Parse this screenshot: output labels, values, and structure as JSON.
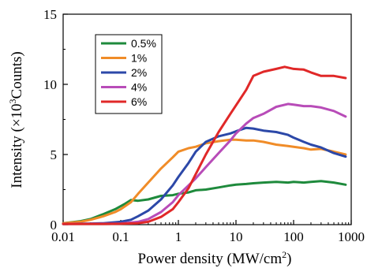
{
  "chart_data": {
    "type": "line",
    "xlabel": "Power density (MW/cm",
    "xlabel_superscript": "2",
    "xlabel_suffix": ")",
    "ylabel": "Intensity (×10",
    "ylabel_superscript": "3",
    "ylabel_suffix": "Counts)",
    "x_scale": "log",
    "xlim": [
      0.01,
      1000
    ],
    "ylim": [
      0,
      15
    ],
    "x_ticks": [
      "0.01",
      "0.1",
      "1",
      "10",
      "100",
      "1000"
    ],
    "x_tick_values": [
      0.01,
      0.1,
      1,
      10,
      100,
      1000
    ],
    "y_ticks": [
      "0",
      "5",
      "10",
      "15"
    ],
    "y_tick_values": [
      0,
      5,
      10,
      15
    ],
    "grid": false,
    "legend_position": "top-left",
    "series": [
      {
        "name": "0.5%",
        "color": "#1e8a3c",
        "points": [
          [
            0.01,
            0.1
          ],
          [
            0.02,
            0.25
          ],
          [
            0.03,
            0.4
          ],
          [
            0.05,
            0.75
          ],
          [
            0.08,
            1.1
          ],
          [
            0.12,
            1.5
          ],
          [
            0.15,
            1.75
          ],
          [
            0.2,
            1.7
          ],
          [
            0.3,
            1.8
          ],
          [
            0.5,
            2.05
          ],
          [
            0.8,
            2.1
          ],
          [
            1,
            2.2
          ],
          [
            1.5,
            2.3
          ],
          [
            2,
            2.45
          ],
          [
            3,
            2.5
          ],
          [
            5,
            2.65
          ],
          [
            8,
            2.8
          ],
          [
            10,
            2.85
          ],
          [
            15,
            2.9
          ],
          [
            20,
            2.95
          ],
          [
            30,
            3.0
          ],
          [
            50,
            3.05
          ],
          [
            80,
            3.0
          ],
          [
            100,
            3.05
          ],
          [
            150,
            3.0
          ],
          [
            200,
            3.05
          ],
          [
            300,
            3.1
          ],
          [
            500,
            3.0
          ],
          [
            800,
            2.85
          ]
        ]
      },
      {
        "name": "1%",
        "color": "#f08c28",
        "points": [
          [
            0.01,
            0.1
          ],
          [
            0.02,
            0.2
          ],
          [
            0.03,
            0.35
          ],
          [
            0.05,
            0.6
          ],
          [
            0.08,
            0.9
          ],
          [
            0.1,
            1.1
          ],
          [
            0.15,
            1.6
          ],
          [
            0.2,
            2.2
          ],
          [
            0.3,
            3.0
          ],
          [
            0.5,
            4.0
          ],
          [
            0.8,
            4.8
          ],
          [
            1,
            5.2
          ],
          [
            1.5,
            5.45
          ],
          [
            2,
            5.55
          ],
          [
            3,
            5.8
          ],
          [
            5,
            5.95
          ],
          [
            8,
            6.05
          ],
          [
            10,
            6.05
          ],
          [
            15,
            6.0
          ],
          [
            20,
            6.0
          ],
          [
            30,
            5.9
          ],
          [
            50,
            5.7
          ],
          [
            80,
            5.6
          ],
          [
            100,
            5.55
          ],
          [
            150,
            5.45
          ],
          [
            200,
            5.35
          ],
          [
            300,
            5.4
          ],
          [
            500,
            5.2
          ],
          [
            800,
            5.0
          ]
        ]
      },
      {
        "name": "2%",
        "color": "#2c48a8",
        "points": [
          [
            0.01,
            0.05
          ],
          [
            0.03,
            0.08
          ],
          [
            0.05,
            0.1
          ],
          [
            0.1,
            0.2
          ],
          [
            0.15,
            0.35
          ],
          [
            0.2,
            0.6
          ],
          [
            0.3,
            1.0
          ],
          [
            0.5,
            1.8
          ],
          [
            0.8,
            2.8
          ],
          [
            1,
            3.4
          ],
          [
            1.5,
            4.4
          ],
          [
            2,
            5.2
          ],
          [
            3,
            5.9
          ],
          [
            5,
            6.3
          ],
          [
            8,
            6.5
          ],
          [
            10,
            6.65
          ],
          [
            15,
            6.9
          ],
          [
            20,
            6.85
          ],
          [
            30,
            6.7
          ],
          [
            50,
            6.6
          ],
          [
            80,
            6.4
          ],
          [
            100,
            6.2
          ],
          [
            150,
            5.9
          ],
          [
            200,
            5.7
          ],
          [
            300,
            5.5
          ],
          [
            500,
            5.1
          ],
          [
            800,
            4.85
          ]
        ]
      },
      {
        "name": "4%",
        "color": "#b84cb8",
        "points": [
          [
            0.01,
            0.05
          ],
          [
            0.05,
            0.06
          ],
          [
            0.1,
            0.08
          ],
          [
            0.2,
            0.2
          ],
          [
            0.3,
            0.4
          ],
          [
            0.5,
            0.9
          ],
          [
            0.8,
            1.6
          ],
          [
            1,
            2.1
          ],
          [
            1.5,
            2.8
          ],
          [
            2,
            3.3
          ],
          [
            3,
            4.1
          ],
          [
            5,
            5.1
          ],
          [
            8,
            6.0
          ],
          [
            10,
            6.5
          ],
          [
            15,
            7.2
          ],
          [
            20,
            7.6
          ],
          [
            30,
            7.9
          ],
          [
            50,
            8.4
          ],
          [
            80,
            8.6
          ],
          [
            100,
            8.55
          ],
          [
            150,
            8.45
          ],
          [
            200,
            8.45
          ],
          [
            300,
            8.35
          ],
          [
            500,
            8.1
          ],
          [
            800,
            7.7
          ]
        ]
      },
      {
        "name": "6%",
        "color": "#e02828",
        "points": [
          [
            0.01,
            0.05
          ],
          [
            0.05,
            0.05
          ],
          [
            0.1,
            0.06
          ],
          [
            0.2,
            0.1
          ],
          [
            0.3,
            0.2
          ],
          [
            0.5,
            0.55
          ],
          [
            0.8,
            1.1
          ],
          [
            1,
            1.6
          ],
          [
            1.5,
            2.6
          ],
          [
            2,
            3.6
          ],
          [
            3,
            5.0
          ],
          [
            5,
            6.6
          ],
          [
            8,
            7.9
          ],
          [
            10,
            8.5
          ],
          [
            15,
            9.6
          ],
          [
            20,
            10.6
          ],
          [
            30,
            10.9
          ],
          [
            50,
            11.1
          ],
          [
            70,
            11.25
          ],
          [
            100,
            11.1
          ],
          [
            150,
            11.05
          ],
          [
            200,
            10.85
          ],
          [
            300,
            10.6
          ],
          [
            500,
            10.6
          ],
          [
            800,
            10.45
          ]
        ]
      }
    ]
  }
}
